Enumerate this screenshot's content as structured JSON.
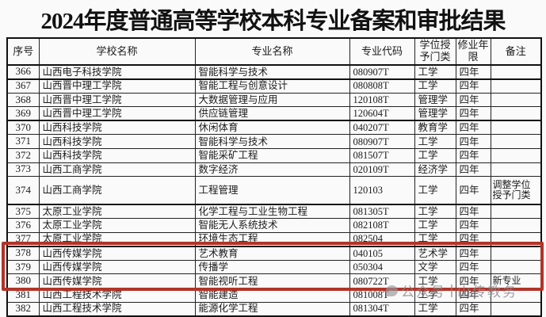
{
  "title": "2024年度普通高等学校本科专业备案和审批结果",
  "table": {
    "columns": [
      "序号",
      "学校名称",
      "专业名称",
      "专业代码",
      "学位授予门类",
      "修业年限",
      "备注"
    ],
    "rows": [
      {
        "no": "366",
        "school": "山西电子科技学院",
        "major": "智能科学与技术",
        "code": "080907T",
        "degree": "工学",
        "years": "四年",
        "note": ""
      },
      {
        "no": "367",
        "school": "山西晋中理工学院",
        "major": "智能工程与创意设计",
        "code": "080808T",
        "degree": "工学",
        "years": "四年",
        "note": ""
      },
      {
        "no": "368",
        "school": "山西晋中理工学院",
        "major": "大数据管理与应用",
        "code": "120108T",
        "degree": "管理学",
        "years": "四年",
        "note": ""
      },
      {
        "no": "369",
        "school": "山西晋中理工学院",
        "major": "供应链管理",
        "code": "120604T",
        "degree": "管理学",
        "years": "四年",
        "note": ""
      },
      {
        "no": "370",
        "school": "山西科技学院",
        "major": "休闲体育",
        "code": "040207T",
        "degree": "教育学",
        "years": "四年",
        "note": ""
      },
      {
        "no": "371",
        "school": "山西科技学院",
        "major": "智能科学与技术",
        "code": "080907T",
        "degree": "工学",
        "years": "四年",
        "note": ""
      },
      {
        "no": "372",
        "school": "山西科技学院",
        "major": "智能采矿工程",
        "code": "081507T",
        "degree": "工学",
        "years": "四年",
        "note": ""
      },
      {
        "no": "373",
        "school": "山西工商学院",
        "major": "数字经济",
        "code": "020109T",
        "degree": "经济学",
        "years": "四年",
        "note": ""
      },
      {
        "no": "374",
        "school": "山西工商学院",
        "major": "工程管理",
        "code": "120103",
        "degree": "工学",
        "years": "四年",
        "note": "调整学位授予门类"
      },
      {
        "no": "375",
        "school": "太原工业学院",
        "major": "化学工程与工业生物工程",
        "code": "081305T",
        "degree": "工学",
        "years": "四年",
        "note": ""
      },
      {
        "no": "376",
        "school": "太原工业学院",
        "major": "智能无人系统技术",
        "code": "082108T",
        "degree": "工学",
        "years": "四年",
        "note": ""
      },
      {
        "no": "377",
        "school": "太原工业学院",
        "major": "环境生态工程",
        "code": "082504",
        "degree": "工学",
        "years": "四年",
        "note": ""
      },
      {
        "no": "378",
        "school": "山西传媒学院",
        "major": "艺术教育",
        "code": "040105",
        "degree": "艺术学",
        "years": "四年",
        "note": ""
      },
      {
        "no": "379",
        "school": "山西传媒学院",
        "major": "传播学",
        "code": "050304",
        "degree": "文学",
        "years": "四年",
        "note": ""
      },
      {
        "no": "380",
        "school": "山西传媒学院",
        "major": "智能视听工程",
        "code": "080722T",
        "degree": "工学",
        "years": "四年",
        "note": "新专业"
      },
      {
        "no": "381",
        "school": "山西工程技术学院",
        "major": "智能建造",
        "code": "081008T",
        "degree": "工学",
        "years": "四年",
        "note": ""
      },
      {
        "no": "382",
        "school": "山西工程技术学院",
        "major": "能源化学工程",
        "code": "081304T",
        "degree": "工学",
        "years": "四年",
        "note": ""
      }
    ]
  },
  "highlight": {
    "row_numbers": [
      "378",
      "379",
      "380"
    ],
    "color": "#b23428"
  },
  "watermark": {
    "icon": "wechat-bubble-icon",
    "label": "公众号",
    "name": "山传教务"
  }
}
